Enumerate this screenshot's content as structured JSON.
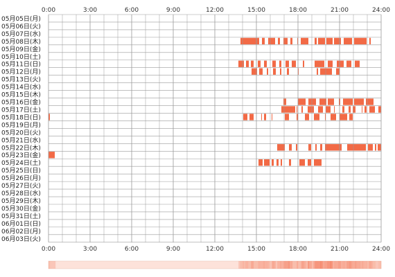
{
  "chart_data": {
    "type": "timeline-heatmap",
    "x_ticks": [
      "0:00",
      "3:00",
      "6:00",
      "9:00",
      "12:00",
      "15:00",
      "18:00",
      "21:00",
      "24:00"
    ],
    "x_range_hours": [
      0,
      24
    ],
    "rows": [
      {
        "label": "05月05日(月)",
        "spans": []
      },
      {
        "label": "05月06日(火)",
        "spans": []
      },
      {
        "label": "05月07日(水)",
        "spans": []
      },
      {
        "label": "05月08日(木)",
        "spans": [
          [
            13.85,
            15.2
          ],
          [
            15.4,
            15.6
          ],
          [
            15.85,
            16.35
          ],
          [
            16.55,
            16.7
          ],
          [
            16.95,
            17.25
          ],
          [
            17.45,
            17.6
          ],
          [
            17.95,
            18.0
          ],
          [
            18.2,
            18.75
          ],
          [
            19.2,
            19.35
          ],
          [
            19.45,
            19.95
          ],
          [
            20.05,
            20.5
          ],
          [
            20.6,
            21.1
          ],
          [
            21.3,
            21.9
          ],
          [
            22.05,
            22.95
          ],
          [
            23.15,
            23.25
          ]
        ]
      },
      {
        "label": "05月09日(金)",
        "spans": []
      },
      {
        "label": "05月10日(土)",
        "spans": []
      },
      {
        "label": "05月11日(日)",
        "spans": [
          [
            13.7,
            14.1
          ],
          [
            14.25,
            14.45
          ],
          [
            14.6,
            14.8
          ],
          [
            15.1,
            15.3
          ],
          [
            15.55,
            15.75
          ],
          [
            16.15,
            16.4
          ],
          [
            16.65,
            16.8
          ],
          [
            17.1,
            17.35
          ],
          [
            17.55,
            17.85
          ],
          [
            18.35,
            18.45
          ],
          [
            19.2,
            19.9
          ],
          [
            20.15,
            20.5
          ],
          [
            20.8,
            21.3
          ],
          [
            21.5,
            21.85
          ],
          [
            22.1,
            22.45
          ]
        ]
      },
      {
        "label": "05月12日(月)",
        "spans": [
          [
            14.65,
            15.05
          ],
          [
            15.2,
            15.45
          ],
          [
            15.75,
            15.85
          ],
          [
            16.2,
            16.4
          ],
          [
            16.7,
            16.8
          ],
          [
            17.2,
            17.35
          ],
          [
            18.0,
            18.05
          ],
          [
            19.35,
            19.45
          ],
          [
            19.6,
            20.45
          ],
          [
            20.75,
            21.0
          ]
        ]
      },
      {
        "label": "05月13日(火)",
        "spans": []
      },
      {
        "label": "05月14日(水)",
        "spans": []
      },
      {
        "label": "05月15日(木)",
        "spans": []
      },
      {
        "label": "05月16日(金)",
        "spans": [
          [
            16.95,
            17.15
          ],
          [
            18.0,
            18.55
          ],
          [
            18.75,
            19.3
          ],
          [
            19.55,
            20.05
          ],
          [
            20.15,
            20.6
          ],
          [
            20.95,
            21.05
          ],
          [
            21.25,
            21.95
          ],
          [
            22.05,
            22.75
          ],
          [
            22.9,
            23.45
          ]
        ]
      },
      {
        "label": "05月17日(土)",
        "spans": [
          [
            16.8,
            17.8
          ],
          [
            17.9,
            17.95
          ],
          [
            18.25,
            18.35
          ],
          [
            18.7,
            19.15
          ],
          [
            19.45,
            19.8
          ],
          [
            20.0,
            20.35
          ],
          [
            20.6,
            20.65
          ],
          [
            21.2,
            21.35
          ],
          [
            21.65,
            21.8
          ],
          [
            21.95,
            22.15
          ],
          [
            22.6,
            22.65
          ],
          [
            22.8,
            22.95
          ],
          [
            23.15,
            23.55
          ],
          [
            23.8,
            24.0
          ]
        ]
      },
      {
        "label": "05月18日(日)",
        "spans": [
          [
            0.0,
            0.1
          ],
          [
            14.05,
            14.35
          ],
          [
            14.5,
            14.8
          ],
          [
            15.35,
            15.4
          ],
          [
            15.55,
            15.7
          ],
          [
            16.1,
            16.15
          ],
          [
            17.05,
            17.35
          ],
          [
            17.9,
            18.0
          ],
          [
            18.5,
            18.8
          ],
          [
            19.15,
            19.55
          ],
          [
            19.95,
            20.0
          ],
          [
            20.35,
            20.75
          ],
          [
            21.0,
            21.55
          ],
          [
            21.7,
            21.95
          ]
        ]
      },
      {
        "label": "05月19日(月)",
        "spans": []
      },
      {
        "label": "05月20日(火)",
        "spans": []
      },
      {
        "label": "05月21日(水)",
        "spans": []
      },
      {
        "label": "05月22日(木)",
        "spans": [
          [
            16.5,
            17.05
          ],
          [
            17.35,
            17.55
          ],
          [
            17.85,
            17.95
          ],
          [
            18.75,
            18.95
          ],
          [
            19.25,
            19.35
          ],
          [
            19.6,
            19.75
          ],
          [
            19.95,
            21.15
          ],
          [
            21.55,
            22.9
          ],
          [
            23.05,
            23.4
          ],
          [
            23.55,
            23.65
          ],
          [
            23.75,
            24.0
          ]
        ]
      },
      {
        "label": "05月23日(金)",
        "spans": [
          [
            0.0,
            0.45
          ]
        ]
      },
      {
        "label": "05月24日(土)",
        "spans": [
          [
            15.15,
            15.45
          ],
          [
            15.55,
            15.95
          ],
          [
            16.1,
            16.25
          ],
          [
            16.45,
            16.6
          ],
          [
            16.75,
            16.85
          ],
          [
            17.35,
            17.5
          ],
          [
            18.1,
            18.5
          ],
          [
            18.7,
            18.95
          ],
          [
            19.15,
            19.7
          ]
        ]
      },
      {
        "label": "05月25日(日)",
        "spans": []
      },
      {
        "label": "05月26日(月)",
        "spans": []
      },
      {
        "label": "05月27日(火)",
        "spans": []
      },
      {
        "label": "05月28日(水)",
        "spans": []
      },
      {
        "label": "05月29日(木)",
        "spans": []
      },
      {
        "label": "05月30日(金)",
        "spans": []
      },
      {
        "label": "05月31日(土)",
        "spans": []
      },
      {
        "label": "06月01日(日)",
        "spans": []
      },
      {
        "label": "06月02日(月)",
        "spans": []
      },
      {
        "label": "06月03日(火)",
        "spans": []
      }
    ],
    "grid": true,
    "bar_color": "#f26a46",
    "grid_color": "#9a9a9a",
    "summary_bar_base_color": "#fde2da"
  }
}
